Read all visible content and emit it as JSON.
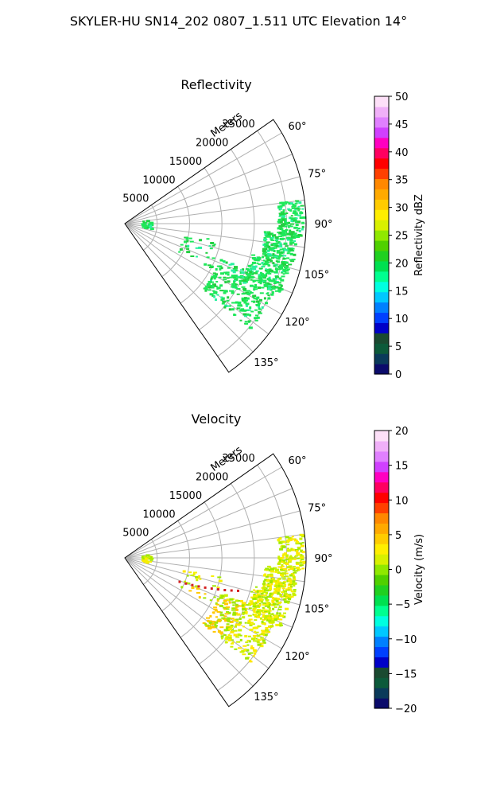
{
  "figure": {
    "suptitle": "SKYLER-HU  SN14_202  0807_1.511 UTC Elevation 14°"
  },
  "chart_data": [
    {
      "type": "polar-sector",
      "title": "Reflectivity",
      "radial_label": "Meters",
      "r_ticks": [
        "5000",
        "10000",
        "15000",
        "20000",
        "25000"
      ],
      "r_tick_values": [
        5000,
        10000,
        15000,
        20000,
        25000
      ],
      "r_max": 28000,
      "theta_ticks": [
        "60°",
        "75°",
        "90°",
        "105°",
        "120°",
        "135°"
      ],
      "theta_tick_values": [
        60,
        75,
        90,
        105,
        120,
        135
      ],
      "theta_range": [
        55,
        145
      ],
      "theta_grid_values": [
        60,
        67.5,
        75,
        82.5,
        90,
        97.5,
        105,
        112.5,
        120,
        127.5,
        135
      ],
      "grid": true,
      "colorbar": {
        "label": "Reflectivity dBZ",
        "range": [
          0,
          50
        ],
        "ticks": [
          "0",
          "5",
          "10",
          "15",
          "20",
          "25",
          "30",
          "35",
          "40",
          "45",
          "50"
        ],
        "tick_values": [
          0,
          5,
          10,
          15,
          20,
          25,
          30,
          35,
          40,
          45,
          50
        ],
        "colormap": [
          "#0b0b6b",
          "#0a3a5a",
          "#0c5a3a",
          "#1a4a30",
          "#0000c8",
          "#0040ff",
          "#0080ff",
          "#00c8ff",
          "#00ffe0",
          "#00ff90",
          "#00e050",
          "#20d020",
          "#50d000",
          "#90e800",
          "#d8f000",
          "#ffee00",
          "#ffcc00",
          "#ffaa00",
          "#ff8800",
          "#ff4000",
          "#ff0000",
          "#ff0060",
          "#ff00c0",
          "#d040ff",
          "#e080ff",
          "#f0b0f8",
          "#fde0f8"
        ]
      },
      "data_color": "#1ee85a",
      "echo_regions": [
        {
          "theta": [
            110,
            130
          ],
          "r": [
            15500,
            25000
          ],
          "density": 1.0
        },
        {
          "theta": [
            102,
            114
          ],
          "r": [
            20000,
            26000
          ],
          "density": 0.7
        },
        {
          "theta": [
            93,
            103
          ],
          "r": [
            21500,
            26500
          ],
          "density": 0.55
        },
        {
          "theta": [
            82,
            94
          ],
          "r": [
            23500,
            27500
          ],
          "density": 0.5
        },
        {
          "theta": [
            100,
            118
          ],
          "r": [
            9000,
            15000
          ],
          "density": 0.12
        },
        {
          "theta": [
            80,
            100
          ],
          "r": [
            2500,
            4000
          ],
          "density": 0.15
        }
      ]
    },
    {
      "type": "polar-sector",
      "title": "Velocity",
      "radial_label": "Meters",
      "r_ticks": [
        "5000",
        "10000",
        "15000",
        "20000",
        "25000"
      ],
      "r_tick_values": [
        5000,
        10000,
        15000,
        20000,
        25000
      ],
      "r_max": 28000,
      "theta_ticks": [
        "60°",
        "75°",
        "90°",
        "105°",
        "120°",
        "135°"
      ],
      "theta_tick_values": [
        60,
        75,
        90,
        105,
        120,
        135
      ],
      "theta_range": [
        55,
        145
      ],
      "theta_grid_values": [
        60,
        67.5,
        75,
        82.5,
        90,
        97.5,
        105,
        112.5,
        120,
        127.5,
        135
      ],
      "grid": true,
      "colorbar": {
        "label": "Velocity (m/s)",
        "range": [
          -20,
          20
        ],
        "ticks": [
          "−20",
          "−15",
          "−10",
          "−5",
          "0",
          "5",
          "10",
          "15",
          "20"
        ],
        "tick_values": [
          -20,
          -15,
          -10,
          -5,
          0,
          5,
          10,
          15,
          20
        ],
        "colormap": [
          "#0b0b6b",
          "#0a3a5a",
          "#0c5a3a",
          "#1a4a30",
          "#0000c8",
          "#0040ff",
          "#0080ff",
          "#00c8ff",
          "#00ffe0",
          "#00ff90",
          "#00e050",
          "#20d020",
          "#50d000",
          "#90e800",
          "#d8f000",
          "#ffee00",
          "#ffcc00",
          "#ffaa00",
          "#ff8800",
          "#ff4000",
          "#ff0000",
          "#ff0060",
          "#ff00c0",
          "#d040ff",
          "#e080ff",
          "#f0b0f8",
          "#fde0f8"
        ]
      },
      "data_colors": [
        "#ffe600",
        "#f6f000",
        "#c8f000",
        "#a0e800",
        "#ffc800"
      ],
      "echo_regions": [
        {
          "theta": [
            110,
            130
          ],
          "r": [
            15500,
            25000
          ],
          "density": 1.0
        },
        {
          "theta": [
            102,
            114
          ],
          "r": [
            20000,
            26000
          ],
          "density": 0.7
        },
        {
          "theta": [
            93,
            103
          ],
          "r": [
            21500,
            26500
          ],
          "density": 0.55
        },
        {
          "theta": [
            82,
            94
          ],
          "r": [
            23500,
            27500
          ],
          "density": 0.5
        },
        {
          "theta": [
            100,
            118
          ],
          "r": [
            9000,
            15000
          ],
          "density": 0.12
        },
        {
          "theta": [
            80,
            100
          ],
          "r": [
            2500,
            4000
          ],
          "density": 0.15
        }
      ]
    }
  ]
}
